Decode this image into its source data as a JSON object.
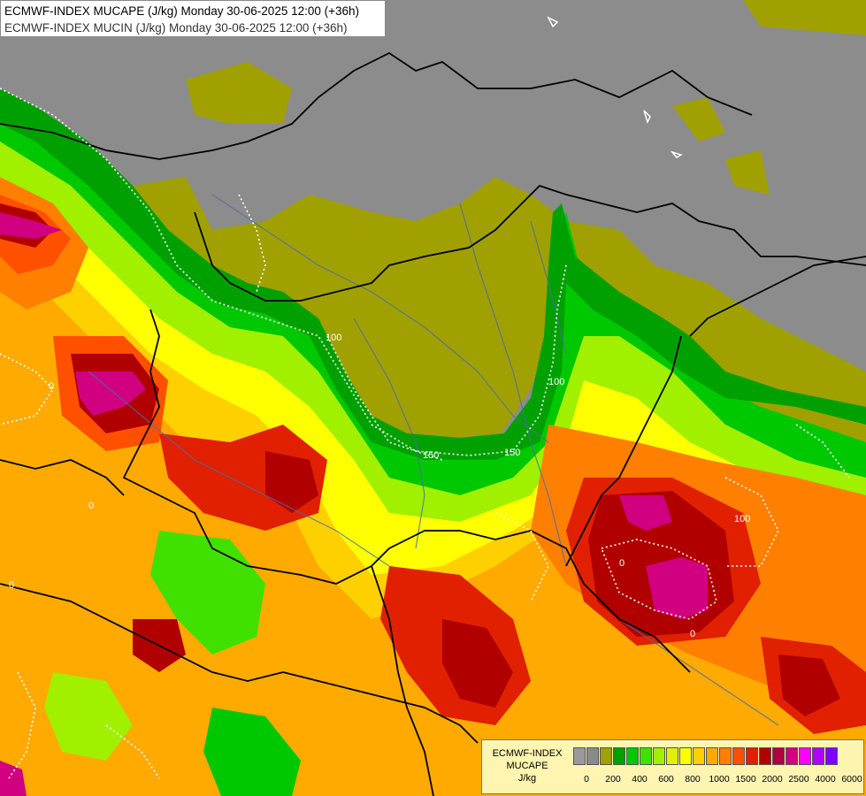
{
  "titles": {
    "line1": "ECMWF-INDEX MUCAPE (J/kg) Monday 30-06-2025 12:00 (+36h)",
    "line2": "ECMWF-INDEX MUCIN (J/kg) Monday 30-06-2025 12:00 (+36h)"
  },
  "legend": {
    "title_line1": "ECMWF-INDEX",
    "title_line2": "MUCAPE",
    "title_line3": "J/kg",
    "colors": [
      "#9a9a9a",
      "#8a8a8a",
      "#a0a000",
      "#00a000",
      "#00c800",
      "#40e000",
      "#a0f000",
      "#e0f000",
      "#ffff00",
      "#ffd000",
      "#ffaa00",
      "#ff7f00",
      "#ff5000",
      "#e02000",
      "#b00000",
      "#b00040",
      "#d00080",
      "#ff00ff",
      "#b000ff",
      "#8000ff",
      "#0000ff",
      "#0080ff",
      "#00c0ff",
      "#00ffff",
      "#ffffff"
    ],
    "ticks": [
      "0",
      "200",
      "400",
      "600",
      "800",
      "1000",
      "1500",
      "2000",
      "2500",
      "4000",
      "6000"
    ]
  },
  "map": {
    "colors": {
      "background": "#8c8c8c",
      "cape_low": "#a0a000",
      "green_dark": "#00a000",
      "green": "#00c800",
      "green_light": "#40e000",
      "lime": "#a0f000",
      "yellow": "#ffff00",
      "gold": "#ffd000",
      "orange": "#ffaa00",
      "orange_dark": "#ff7f00",
      "red_orange": "#ff5000",
      "red": "#e02000",
      "dark_red": "#b00000",
      "magenta": "#d00080",
      "border": "#000000",
      "river": "#4a6fa5",
      "cin_contour": "#ffffff"
    },
    "contour_labels": [
      "100",
      "150",
      "150",
      "100",
      "0",
      "0",
      "0",
      "0",
      "0",
      "100"
    ]
  }
}
